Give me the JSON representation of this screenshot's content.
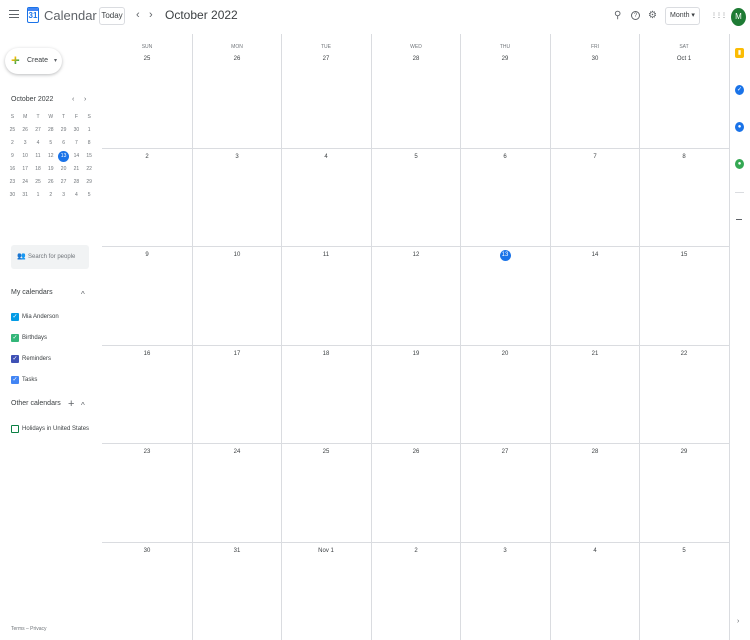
{
  "header": {
    "app_name": "Calendar",
    "logo_number": "31",
    "today_label": "Today",
    "prev_label": "‹",
    "next_label": "›",
    "month_title": "October 2022",
    "search_icon": "⚲",
    "help_icon": "?",
    "settings_icon": "⚙",
    "view_label": "Month ▾",
    "apps_icon": "⋮⋮⋮",
    "avatar_letter": "M"
  },
  "sidebar": {
    "create_label": "Create",
    "create_caret": "▾",
    "mini_title": "October 2022",
    "mini_prev": "‹",
    "mini_next": "›",
    "mini_dow": [
      "S",
      "M",
      "T",
      "W",
      "T",
      "F",
      "S"
    ],
    "mini_weeks": [
      [
        "25",
        "26",
        "27",
        "28",
        "29",
        "30",
        "1"
      ],
      [
        "2",
        "3",
        "4",
        "5",
        "6",
        "7",
        "8"
      ],
      [
        "9",
        "10",
        "11",
        "12",
        "13",
        "14",
        "15"
      ],
      [
        "16",
        "17",
        "18",
        "19",
        "20",
        "21",
        "22"
      ],
      [
        "23",
        "24",
        "25",
        "26",
        "27",
        "28",
        "29"
      ],
      [
        "30",
        "31",
        "1",
        "2",
        "3",
        "4",
        "5"
      ]
    ],
    "mini_today": "13",
    "search_people_placeholder": "Search for people",
    "search_people_icon": "👥",
    "my_calendars_title": "My calendars",
    "my_calendars_toggle": "^",
    "my_calendars": [
      {
        "label": "Mia Anderson",
        "color": "#039be5"
      },
      {
        "label": "Birthdays",
        "color": "#33b679"
      },
      {
        "label": "Reminders",
        "color": "#3f51b5"
      },
      {
        "label": "Tasks",
        "color": "#4285f4"
      }
    ],
    "other_calendars_title": "Other calendars",
    "other_add": "+",
    "other_toggle": "^",
    "other_calendars": [
      {
        "label": "Holidays in United States",
        "color": "#0b8043"
      }
    ],
    "terms": "Terms – Privacy"
  },
  "grid": {
    "dow": [
      "SUN",
      "MON",
      "TUE",
      "WED",
      "THU",
      "FRI",
      "SAT"
    ],
    "weeks": [
      [
        "25",
        "26",
        "27",
        "28",
        "29",
        "30",
        "Oct 1"
      ],
      [
        "2",
        "3",
        "4",
        "5",
        "6",
        "7",
        "8"
      ],
      [
        "9",
        "10",
        "11",
        "12",
        "13",
        "14",
        "15"
      ],
      [
        "16",
        "17",
        "18",
        "19",
        "20",
        "21",
        "22"
      ],
      [
        "23",
        "24",
        "25",
        "26",
        "27",
        "28",
        "29"
      ],
      [
        "30",
        "31",
        "Nov 1",
        "2",
        "3",
        "4",
        "5"
      ]
    ],
    "today": "13"
  },
  "right_panel": {
    "icons": [
      {
        "name": "keep-icon",
        "glyph": "▮",
        "color": "#fbbc04"
      },
      {
        "name": "tasks-icon",
        "glyph": "✓",
        "color": "#1a73e8"
      },
      {
        "name": "contacts-icon",
        "glyph": "●",
        "color": "#1a73e8"
      },
      {
        "name": "maps-icon",
        "glyph": "●",
        "color": "#34a853"
      }
    ],
    "chevron": "›"
  }
}
